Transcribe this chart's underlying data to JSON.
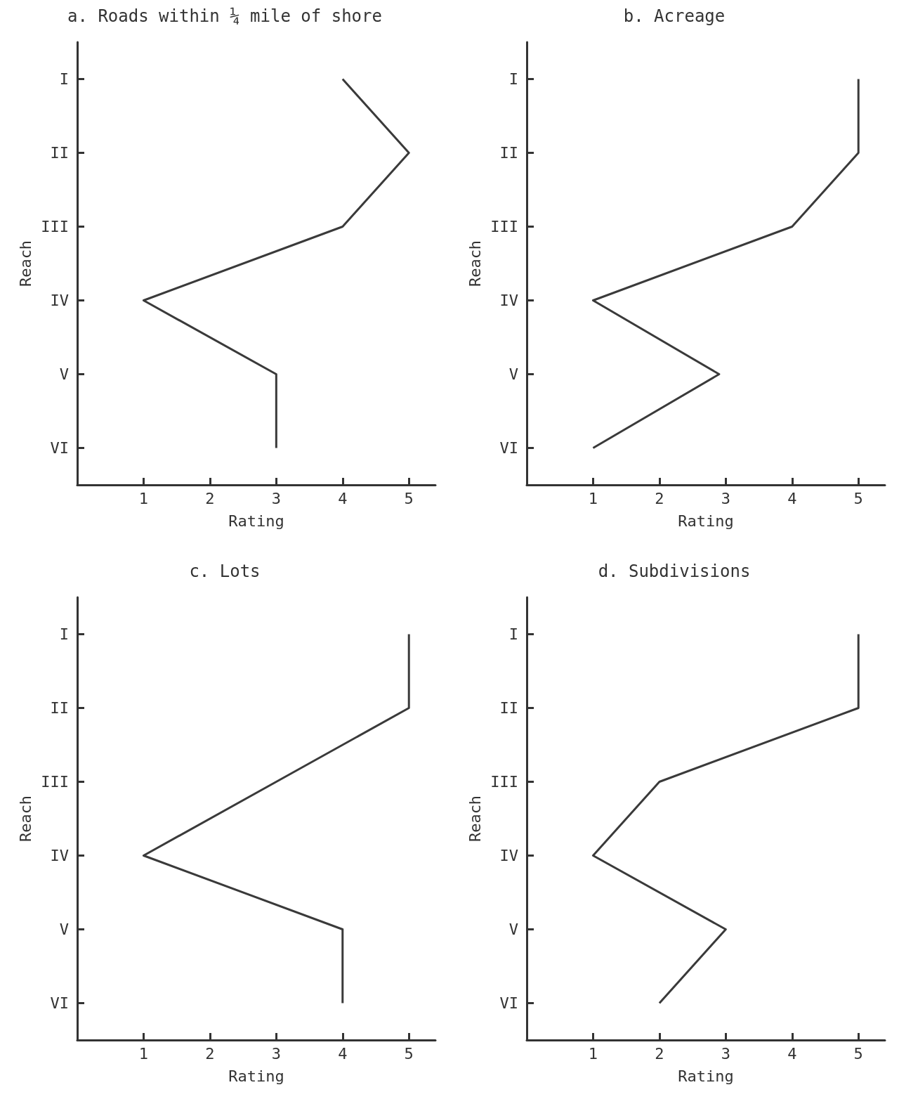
{
  "chart_data": [
    {
      "type": "line",
      "orientation": "horizontal",
      "title": "a. Roads within ¼ mile of shore",
      "xlabel": "Rating",
      "ylabel": "Reach",
      "categories": [
        "I",
        "II",
        "III",
        "IV",
        "V",
        "VI"
      ],
      "values": [
        4,
        5,
        4,
        1,
        3,
        3
      ],
      "color": "#3a3a3a",
      "xlim": [
        0,
        5.4
      ],
      "xticks": [
        1,
        2,
        3,
        4,
        5
      ],
      "grid": false,
      "marker": "none"
    },
    {
      "type": "line",
      "orientation": "horizontal",
      "title": "b. Acreage",
      "xlabel": "Rating",
      "ylabel": "Reach",
      "categories": [
        "I",
        "II",
        "III",
        "IV",
        "V",
        "VI"
      ],
      "values": [
        5,
        5,
        4,
        1,
        2.9,
        1
      ],
      "color": "#3a3a3a",
      "xlim": [
        0,
        5.4
      ],
      "xticks": [
        1,
        2,
        3,
        4,
        5
      ],
      "grid": false,
      "marker": "none"
    },
    {
      "type": "line",
      "orientation": "horizontal",
      "title": "c. Lots",
      "xlabel": "Rating",
      "ylabel": "Reach",
      "categories": [
        "I",
        "II",
        "III",
        "IV",
        "V",
        "VI"
      ],
      "values": [
        5,
        5,
        3,
        1,
        4,
        4
      ],
      "color": "#3a3a3a",
      "xlim": [
        0,
        5.4
      ],
      "xticks": [
        1,
        2,
        3,
        4,
        5
      ],
      "grid": false,
      "marker": "none"
    },
    {
      "type": "line",
      "orientation": "horizontal",
      "title": "d. Subdivisions",
      "xlabel": "Rating",
      "ylabel": "Reach",
      "categories": [
        "I",
        "II",
        "III",
        "IV",
        "V",
        "VI"
      ],
      "values": [
        5,
        5,
        2,
        1,
        3,
        2
      ],
      "color": "#3a3a3a",
      "xlim": [
        0,
        5.4
      ],
      "xticks": [
        1,
        2,
        3,
        4,
        5
      ],
      "grid": false,
      "marker": "none"
    }
  ]
}
